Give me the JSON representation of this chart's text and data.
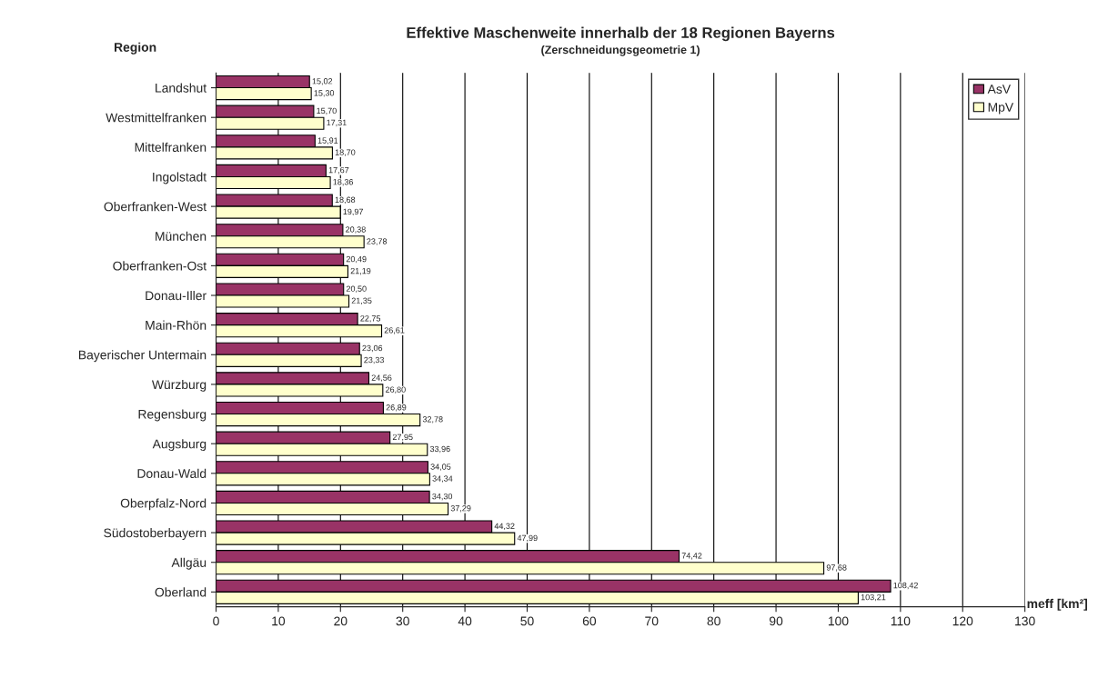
{
  "chart_data": {
    "type": "bar",
    "orientation": "horizontal",
    "title": "Effektive Maschenweite innerhalb der 18 Regionen Bayerns",
    "subtitle": "(Zerschneidungsgeometrie 1)",
    "xlabel": "meff [km²]",
    "ylabel": "Region",
    "categories": [
      "Landshut",
      "Westmittelfranken",
      "Mittelfranken",
      "Ingolstadt",
      "Oberfranken-West",
      "München",
      "Oberfranken-Ost",
      "Donau-Iller",
      "Main-Rhön",
      "Bayerischer Untermain",
      "Würzburg",
      "Regensburg",
      "Augsburg",
      "Donau-Wald",
      "Oberpfalz-Nord",
      "Südostoberbayern",
      "Allgäu",
      "Oberland"
    ],
    "series": [
      {
        "name": "AsV",
        "color": "#993366",
        "values": [
          15.02,
          15.7,
          15.91,
          17.67,
          18.68,
          20.38,
          20.49,
          20.5,
          22.75,
          23.06,
          24.56,
          26.89,
          27.95,
          34.05,
          34.3,
          44.32,
          74.42,
          108.42
        ],
        "value_labels": [
          "15,02",
          "15,70",
          "15,91",
          "17,67",
          "18,68",
          "20,38",
          "20,49",
          "20,50",
          "22,75",
          "23,06",
          "24,56",
          "26,89",
          "27,95",
          "34,05",
          "34,30",
          "44,32",
          "74,42",
          "108,42"
        ]
      },
      {
        "name": "MpV",
        "color": "#ffffcc",
        "values": [
          15.3,
          17.31,
          18.7,
          18.36,
          19.97,
          23.78,
          21.19,
          21.35,
          26.61,
          23.33,
          26.8,
          32.78,
          33.96,
          34.34,
          37.29,
          47.99,
          97.68,
          103.21
        ],
        "value_labels": [
          "15,30",
          "17,31",
          "18,70",
          "18,36",
          "19,97",
          "23,78",
          "21,19",
          "21,35",
          "26,61",
          "23,33",
          "26,80",
          "32,78",
          "33,96",
          "34,34",
          "37,29",
          "47,99",
          "97,68",
          "103,21"
        ]
      }
    ],
    "xlim": [
      0,
      130
    ],
    "xticks": [
      0,
      10,
      20,
      30,
      40,
      50,
      60,
      70,
      80,
      90,
      100,
      110,
      120,
      130
    ],
    "grid": "x",
    "legend": "top right"
  }
}
